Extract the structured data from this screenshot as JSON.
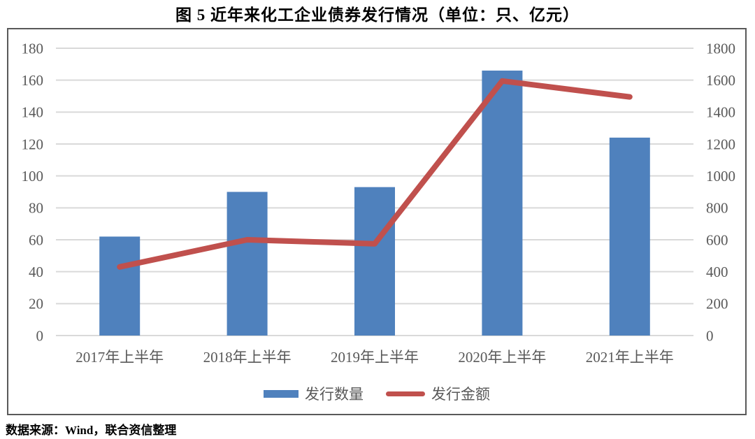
{
  "title": "图 5  近年来化工企业债券发行情况（单位：只、亿元）",
  "footer": "数据来源：Wind，联合资信整理",
  "colors": {
    "bar": "#4F81BD",
    "line": "#C0504D",
    "gridline": "#D9D9D9",
    "axis_text": "#595959",
    "border": "#595959",
    "title_text": "#000000"
  },
  "chart_data": {
    "type": "combo",
    "title": "图 5  近年来化工企业债券发行情况（单位：只、亿元）",
    "categories": [
      "2017年上半年",
      "2018年上半年",
      "2019年上半年",
      "2020年上半年",
      "2021年上半年"
    ],
    "series": [
      {
        "name": "发行数量",
        "chart_type": "bar",
        "axis": "left",
        "unit": "只",
        "color": "#4F81BD",
        "values": [
          62,
          90,
          93,
          166,
          124
        ]
      },
      {
        "name": "发行金额",
        "chart_type": "line",
        "axis": "right",
        "unit": "亿元",
        "color": "#C0504D",
        "values": [
          430,
          600,
          575,
          1595,
          1495
        ]
      }
    ],
    "left_axis": {
      "min": 0,
      "max": 180,
      "step": 20,
      "ticks": [
        0,
        20,
        40,
        60,
        80,
        100,
        120,
        140,
        160,
        180
      ]
    },
    "right_axis": {
      "min": 0,
      "max": 1800,
      "step": 200,
      "ticks": [
        0,
        200,
        400,
        600,
        800,
        1000,
        1200,
        1400,
        1600,
        1800
      ]
    },
    "grid": true,
    "legend_position": "bottom"
  }
}
